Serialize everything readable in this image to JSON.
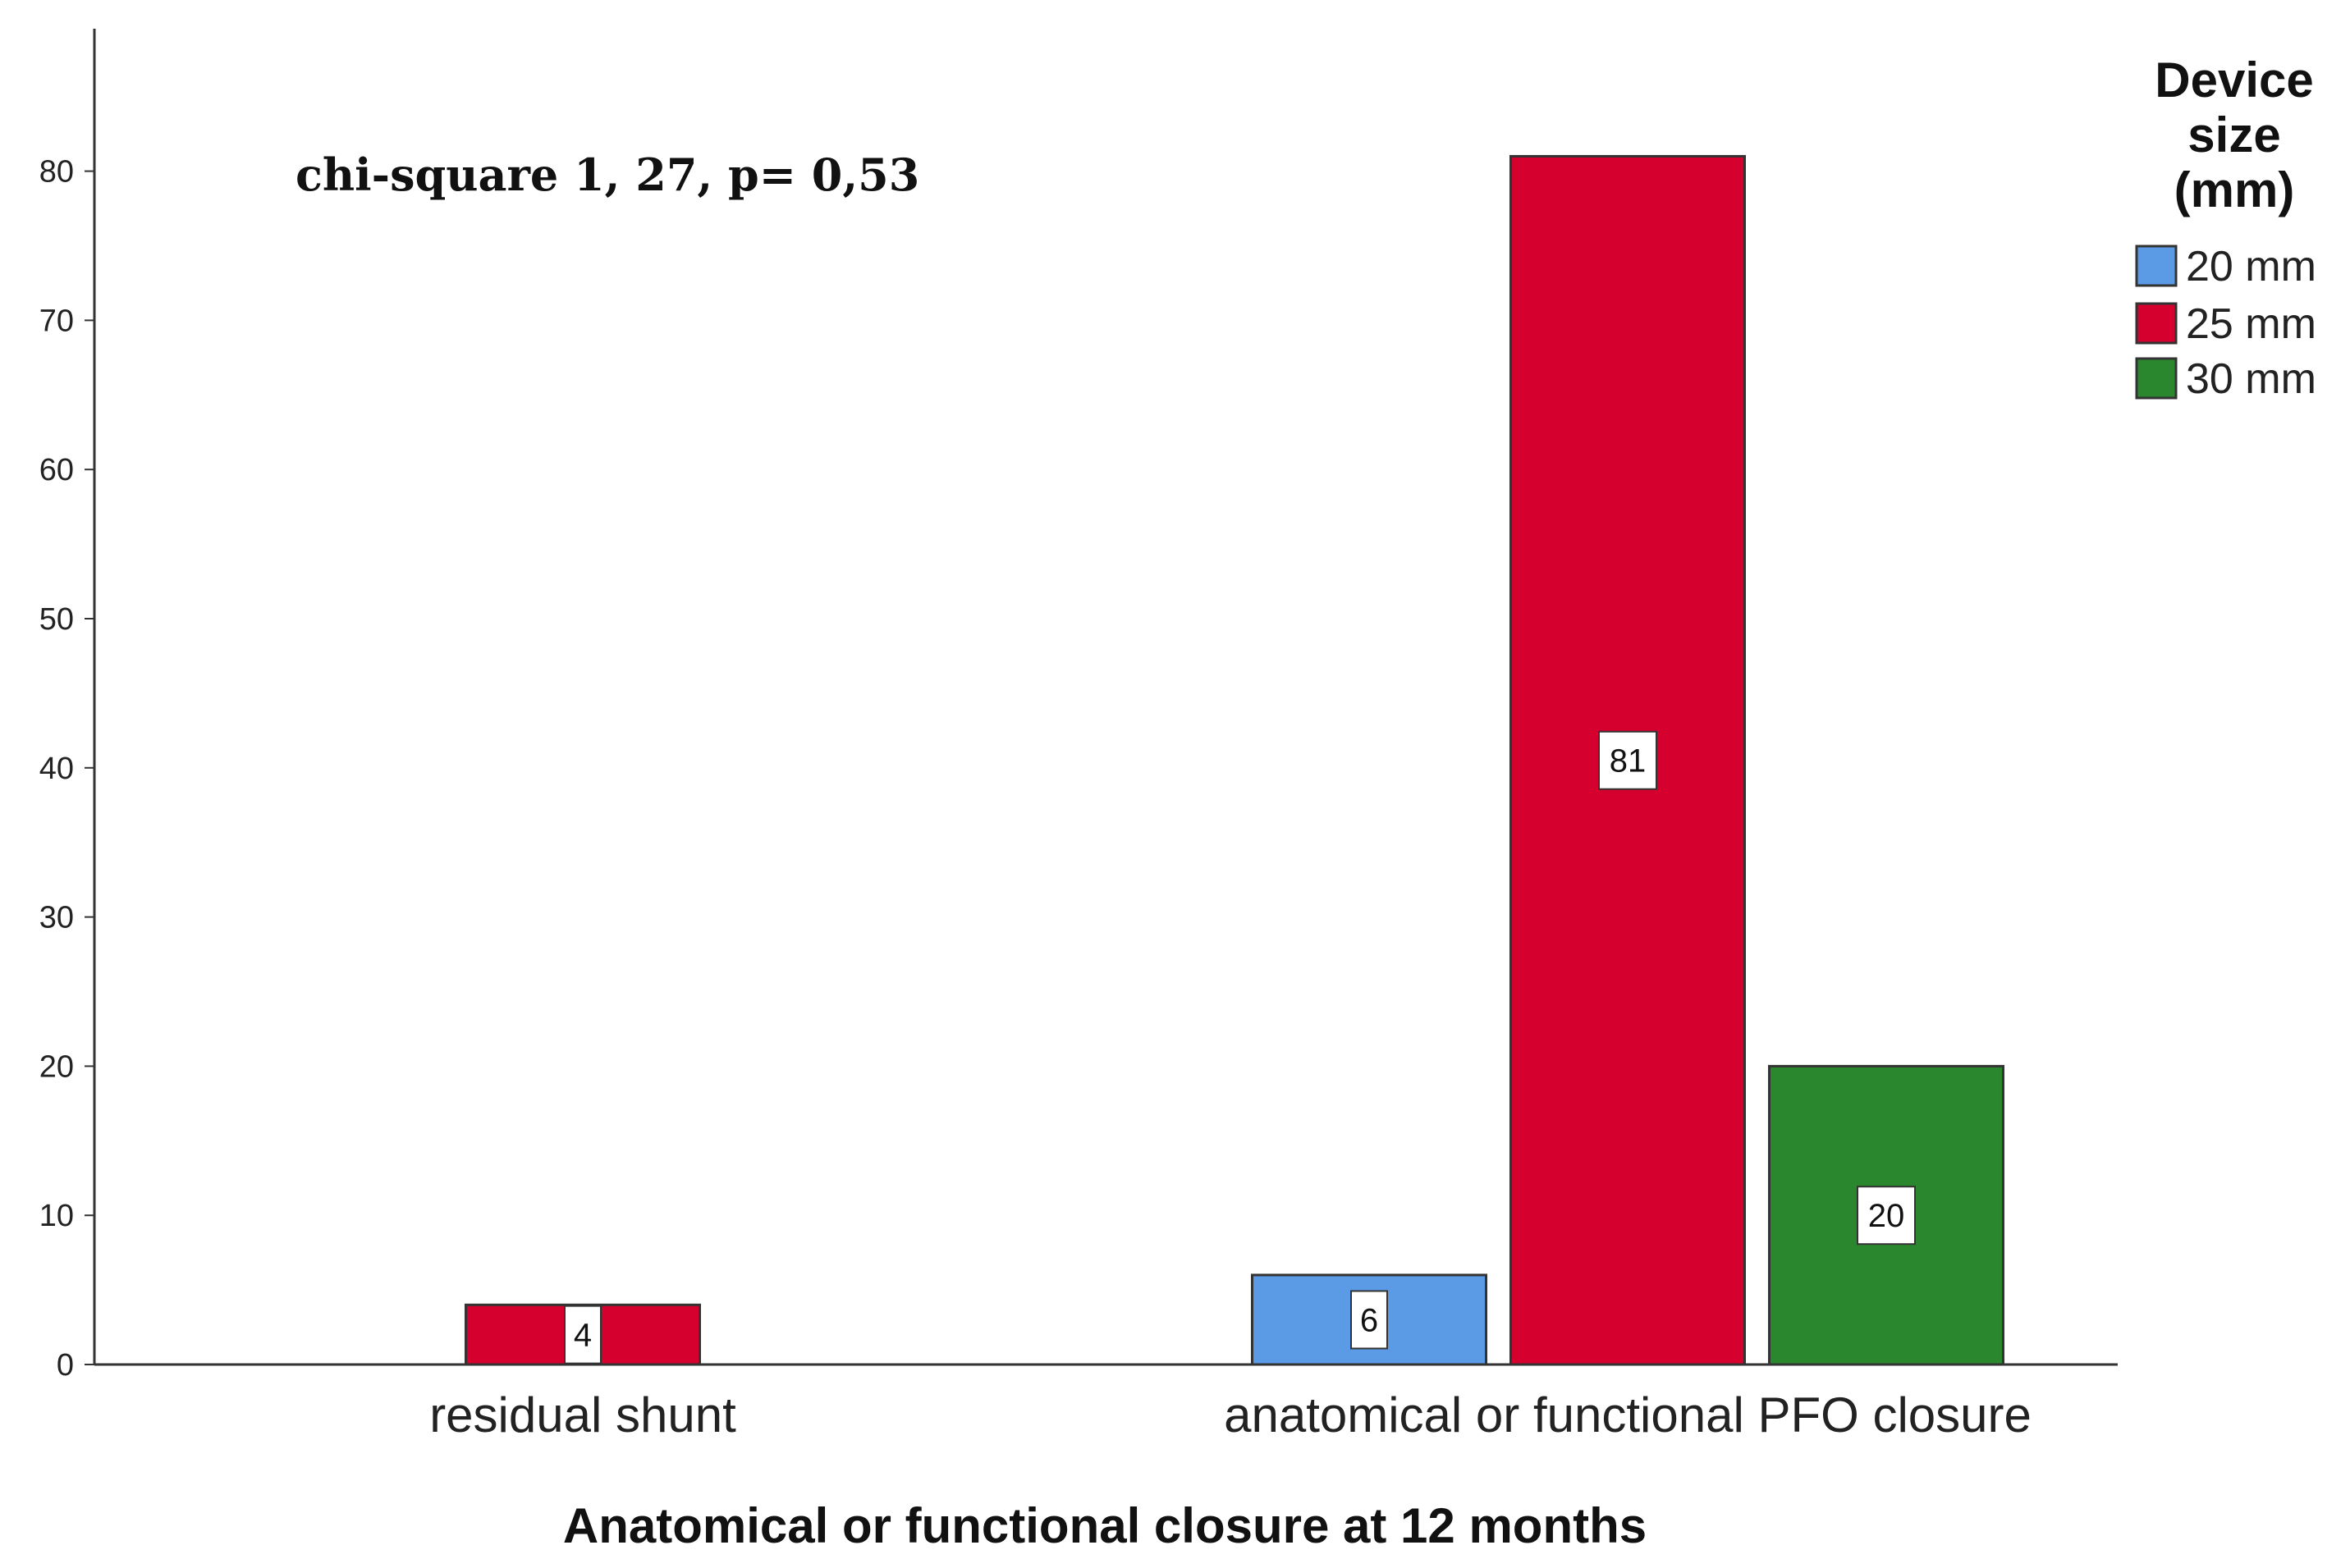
{
  "chart_data": {
    "type": "bar",
    "title": "",
    "xlabel": "Anatomical or functional closure at 12 months",
    "ylabel": "",
    "categories": [
      "residual shunt",
      "anatomical or functional PFO closure"
    ],
    "series": [
      {
        "name": "20 mm",
        "color": "#5b9be6",
        "values": [
          0,
          6
        ]
      },
      {
        "name": "25 mm",
        "color": "#d6002f",
        "values": [
          4,
          81
        ]
      },
      {
        "name": "30 mm",
        "color": "#2a872d",
        "values": [
          0,
          20
        ]
      }
    ],
    "ylim": [
      0,
      90
    ],
    "yticks": [
      0,
      10,
      20,
      30,
      40,
      50,
      60,
      70,
      80
    ],
    "grid": false,
    "legend": {
      "title": "Device size (mm)",
      "title_lines": [
        "Device",
        "size",
        "(mm)"
      ],
      "position": "top-right"
    },
    "annotation": "chi-square 1, 27, p= 0,53"
  }
}
